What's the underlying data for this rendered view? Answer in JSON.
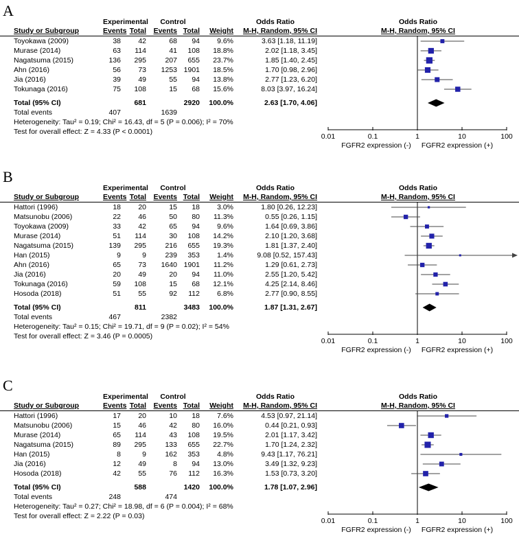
{
  "header": {
    "group_experimental": "Experimental",
    "group_control": "Control",
    "col_study": "Study or Subgroup",
    "col_events": "Events",
    "col_total": "Total",
    "col_weight": "Weight",
    "col_odds_ratio": "Odds Ratio",
    "col_ci_method": "M-H, Random, 95% CI"
  },
  "axis": {
    "scale": "log",
    "ticks": [
      0.01,
      0.1,
      1,
      10,
      100
    ],
    "tick_labels": [
      "0.01",
      "0.1",
      "1",
      "10",
      "100"
    ],
    "xlabel_left": "FGFR2 expression (-)",
    "xlabel_right": "FGFR2 expression (+)"
  },
  "colors": {
    "square": "#2222aa",
    "ci_line": "#444444",
    "diamond": "#000000",
    "axis": "#000000"
  },
  "chart_data": [
    {
      "type": "scatter",
      "letter": "A",
      "studies": [
        {
          "name": "Toyokawa (2009)",
          "events_exp": 38,
          "total_exp": 42,
          "events_ctrl": 68,
          "total_ctrl": 94,
          "weight": "9.6%",
          "or": 3.63,
          "ci_low": 1.18,
          "ci_high": 11.19,
          "or_label": "3.63 [1.18, 11.19]"
        },
        {
          "name": "Murase (2014)",
          "events_exp": 63,
          "total_exp": 114,
          "events_ctrl": 41,
          "total_ctrl": 108,
          "weight": "18.8%",
          "or": 2.02,
          "ci_low": 1.18,
          "ci_high": 3.45,
          "or_label": "2.02 [1.18, 3.45]"
        },
        {
          "name": "Nagatsuma (2015)",
          "events_exp": 136,
          "total_exp": 295,
          "events_ctrl": 207,
          "total_ctrl": 655,
          "weight": "23.7%",
          "or": 1.85,
          "ci_low": 1.4,
          "ci_high": 2.45,
          "or_label": "1.85 [1.40, 2.45]"
        },
        {
          "name": "Ahn (2016)",
          "events_exp": 56,
          "total_exp": 73,
          "events_ctrl": 1253,
          "total_ctrl": 1901,
          "weight": "18.5%",
          "or": 1.7,
          "ci_low": 0.98,
          "ci_high": 2.96,
          "or_label": "1.70 [0.98, 2.96]"
        },
        {
          "name": "Jia (2016)",
          "events_exp": 39,
          "total_exp": 49,
          "events_ctrl": 55,
          "total_ctrl": 94,
          "weight": "13.8%",
          "or": 2.77,
          "ci_low": 1.23,
          "ci_high": 6.2,
          "or_label": "2.77 [1.23, 6.20]"
        },
        {
          "name": "Tokunaga (2016)",
          "events_exp": 75,
          "total_exp": 108,
          "events_ctrl": 15,
          "total_ctrl": 68,
          "weight": "15.6%",
          "or": 8.03,
          "ci_low": 3.97,
          "ci_high": 16.24,
          "or_label": "8.03 [3.97, 16.24]"
        }
      ],
      "total": {
        "label": "Total (95% CI)",
        "total_exp": 681,
        "total_ctrl": 2920,
        "weight": "100.0%",
        "or": 2.63,
        "ci_low": 1.7,
        "ci_high": 4.06,
        "or_label": "2.63 [1.70, 4.06]"
      },
      "total_events": {
        "label": "Total events",
        "exp": 407,
        "ctrl": 1639
      },
      "heterogeneity": "Heterogeneity: Tau² = 0.19; Chi² = 16.43, df = 5 (P = 0.006); I² = 70%",
      "overall_test": "Test for overall effect: Z = 4.33 (P < 0.0001)"
    },
    {
      "type": "scatter",
      "letter": "B",
      "studies": [
        {
          "name": "Hattori (1996)",
          "events_exp": 18,
          "total_exp": 20,
          "events_ctrl": 15,
          "total_ctrl": 18,
          "weight": "3.0%",
          "or": 1.8,
          "ci_low": 0.26,
          "ci_high": 12.23,
          "or_label": "1.80 [0.26, 12.23]"
        },
        {
          "name": "Matsunobu (2006)",
          "events_exp": 22,
          "total_exp": 46,
          "events_ctrl": 50,
          "total_ctrl": 80,
          "weight": "11.3%",
          "or": 0.55,
          "ci_low": 0.26,
          "ci_high": 1.15,
          "or_label": "0.55 [0.26, 1.15]"
        },
        {
          "name": "Toyokawa (2009)",
          "events_exp": 33,
          "total_exp": 42,
          "events_ctrl": 65,
          "total_ctrl": 94,
          "weight": "9.6%",
          "or": 1.64,
          "ci_low": 0.69,
          "ci_high": 3.86,
          "or_label": "1.64 [0.69, 3.86]"
        },
        {
          "name": "Murase (2014)",
          "events_exp": 51,
          "total_exp": 114,
          "events_ctrl": 30,
          "total_ctrl": 108,
          "weight": "14.2%",
          "or": 2.1,
          "ci_low": 1.2,
          "ci_high": 3.68,
          "or_label": "2.10 [1.20, 3.68]"
        },
        {
          "name": "Nagatsuma (2015)",
          "events_exp": 139,
          "total_exp": 295,
          "events_ctrl": 216,
          "total_ctrl": 655,
          "weight": "19.3%",
          "or": 1.81,
          "ci_low": 1.37,
          "ci_high": 2.4,
          "or_label": "1.81 [1.37, 2.40]"
        },
        {
          "name": "Han (2015)",
          "events_exp": 9,
          "total_exp": 9,
          "events_ctrl": 239,
          "total_ctrl": 353,
          "weight": "1.4%",
          "or": 9.08,
          "ci_low": 0.52,
          "ci_high": 157.43,
          "or_label": "9.08 [0.52, 157.43]"
        },
        {
          "name": "Ahn (2016)",
          "events_exp": 65,
          "total_exp": 73,
          "events_ctrl": 1640,
          "total_ctrl": 1901,
          "weight": "11.2%",
          "or": 1.29,
          "ci_low": 0.61,
          "ci_high": 2.73,
          "or_label": "1.29 [0.61, 2.73]"
        },
        {
          "name": "Jia (2016)",
          "events_exp": 20,
          "total_exp": 49,
          "events_ctrl": 20,
          "total_ctrl": 94,
          "weight": "11.0%",
          "or": 2.55,
          "ci_low": 1.2,
          "ci_high": 5.42,
          "or_label": "2.55 [1.20, 5.42]"
        },
        {
          "name": "Tokunaga (2016)",
          "events_exp": 59,
          "total_exp": 108,
          "events_ctrl": 15,
          "total_ctrl": 68,
          "weight": "12.1%",
          "or": 4.25,
          "ci_low": 2.14,
          "ci_high": 8.46,
          "or_label": "4.25 [2.14, 8.46]"
        },
        {
          "name": "Hosoda (2018)",
          "events_exp": 51,
          "total_exp": 55,
          "events_ctrl": 92,
          "total_ctrl": 112,
          "weight": "6.8%",
          "or": 2.77,
          "ci_low": 0.9,
          "ci_high": 8.55,
          "or_label": "2.77 [0.90, 8.55]"
        }
      ],
      "total": {
        "label": "Total (95% CI)",
        "total_exp": 811,
        "total_ctrl": 3483,
        "weight": "100.0%",
        "or": 1.87,
        "ci_low": 1.31,
        "ci_high": 2.67,
        "or_label": "1.87 [1.31, 2.67]"
      },
      "total_events": {
        "label": "Total events",
        "exp": 467,
        "ctrl": 2382
      },
      "heterogeneity": "Heterogeneity: Tau² = 0.15; Chi² = 19.71, df = 9 (P = 0.02); I² = 54%",
      "overall_test": "Test for overall effect: Z = 3.46 (P = 0.0005)"
    },
    {
      "type": "scatter",
      "letter": "C",
      "studies": [
        {
          "name": "Hattori (1996)",
          "events_exp": 17,
          "total_exp": 20,
          "events_ctrl": 10,
          "total_ctrl": 18,
          "weight": "7.6%",
          "or": 4.53,
          "ci_low": 0.97,
          "ci_high": 21.14,
          "or_label": "4.53 [0.97, 21.14]"
        },
        {
          "name": "Matsunobu (2006)",
          "events_exp": 15,
          "total_exp": 46,
          "events_ctrl": 42,
          "total_ctrl": 80,
          "weight": "16.0%",
          "or": 0.44,
          "ci_low": 0.21,
          "ci_high": 0.93,
          "or_label": "0.44 [0.21, 0.93]"
        },
        {
          "name": "Murase (2014)",
          "events_exp": 65,
          "total_exp": 114,
          "events_ctrl": 43,
          "total_ctrl": 108,
          "weight": "19.5%",
          "or": 2.01,
          "ci_low": 1.17,
          "ci_high": 3.42,
          "or_label": "2.01 [1.17, 3.42]"
        },
        {
          "name": "Nagatsuma (2015)",
          "events_exp": 89,
          "total_exp": 295,
          "events_ctrl": 133,
          "total_ctrl": 655,
          "weight": "22.7%",
          "or": 1.7,
          "ci_low": 1.24,
          "ci_high": 2.32,
          "or_label": "1.70 [1.24, 2.32]"
        },
        {
          "name": "Han (2015)",
          "events_exp": 8,
          "total_exp": 9,
          "events_ctrl": 162,
          "total_ctrl": 353,
          "weight": "4.8%",
          "or": 9.43,
          "ci_low": 1.17,
          "ci_high": 76.21,
          "or_label": "9.43 [1.17, 76.21]"
        },
        {
          "name": "Jia (2016)",
          "events_exp": 12,
          "total_exp": 49,
          "events_ctrl": 8,
          "total_ctrl": 94,
          "weight": "13.0%",
          "or": 3.49,
          "ci_low": 1.32,
          "ci_high": 9.23,
          "or_label": "3.49 [1.32, 9.23]"
        },
        {
          "name": "Hosoda (2018)",
          "events_exp": 42,
          "total_exp": 55,
          "events_ctrl": 76,
          "total_ctrl": 112,
          "weight": "16.3%",
          "or": 1.53,
          "ci_low": 0.73,
          "ci_high": 3.2,
          "or_label": "1.53 [0.73, 3.20]"
        }
      ],
      "total": {
        "label": "Total (95% CI)",
        "total_exp": 588,
        "total_ctrl": 1420,
        "weight": "100.0%",
        "or": 1.78,
        "ci_low": 1.07,
        "ci_high": 2.96,
        "or_label": "1.78 [1.07, 2.96]"
      },
      "total_events": {
        "label": "Total events",
        "exp": 248,
        "ctrl": 474
      },
      "heterogeneity": "Heterogeneity: Tau² = 0.27; Chi² = 18.98, df = 6 (P = 0.004); I² = 68%",
      "overall_test": "Test for overall effect: Z = 2.22 (P = 0.03)"
    }
  ]
}
